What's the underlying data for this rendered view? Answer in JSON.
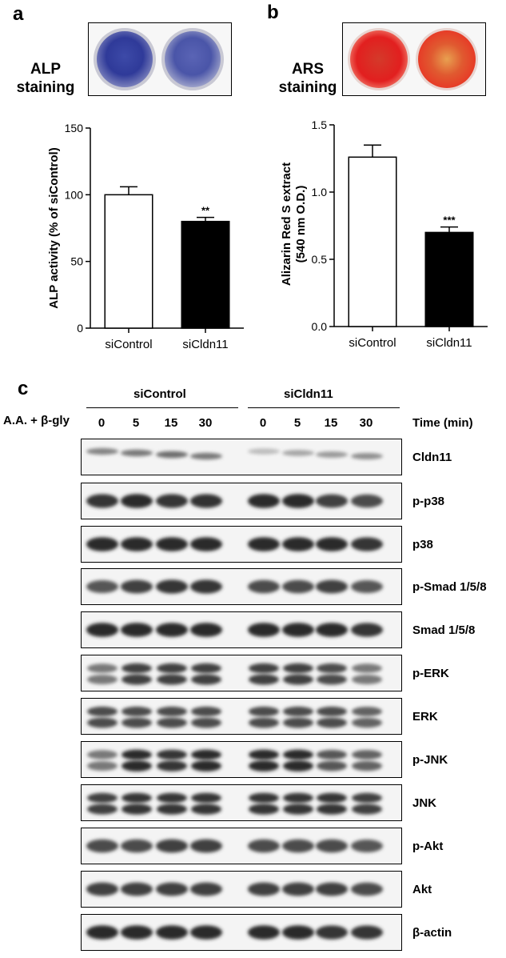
{
  "panels": {
    "a": "a",
    "b": "b",
    "c": "c"
  },
  "staining": {
    "alp": {
      "line1": "ALP",
      "line2": "staining"
    },
    "ars": {
      "line1": "ARS",
      "line2": "staining"
    }
  },
  "chart_data": [
    {
      "type": "bar",
      "panel": "a",
      "categories": [
        "siControl",
        "siCldn11"
      ],
      "values": [
        100,
        80
      ],
      "errors": [
        6,
        3
      ],
      "significance": [
        "",
        "**"
      ],
      "bar_colors": [
        "#ffffff",
        "#000000"
      ],
      "ylabel": "ALP activity (% of siControl)",
      "xlabel": "",
      "ylim": [
        0,
        150
      ],
      "yticks": [
        0,
        50,
        100,
        150
      ],
      "ytick_labels": [
        "0",
        "50",
        "100",
        "150"
      ]
    },
    {
      "type": "bar",
      "panel": "b",
      "categories": [
        "siControl",
        "siCldn11"
      ],
      "values": [
        1.26,
        0.7
      ],
      "errors": [
        0.09,
        0.04
      ],
      "significance": [
        "",
        "***"
      ],
      "bar_colors": [
        "#ffffff",
        "#000000"
      ],
      "ylabel": "Alizarin Red  S extract",
      "ylabel2": "(540 nm O.D.)",
      "xlabel": "",
      "ylim": [
        0,
        1.5
      ],
      "yticks": [
        0,
        0.5,
        1.0,
        1.5
      ],
      "ytick_labels": [
        "0.0",
        "0.5",
        "1.0",
        "1.5"
      ]
    }
  ],
  "western": {
    "treatment": "A.A. + β-gly",
    "group1": "siControl",
    "group2": "siCldn11",
    "time_label": "Time (min)",
    "timepoints": [
      "0",
      "5",
      "15",
      "30",
      "0",
      "5",
      "15",
      "30"
    ],
    "blots": [
      {
        "label": "Cldn11",
        "intensity": [
          0.55,
          0.6,
          0.65,
          0.6,
          0.3,
          0.4,
          0.45,
          0.5
        ],
        "double": false
      },
      {
        "label": "p-p38",
        "intensity": [
          0.9,
          0.95,
          0.9,
          0.92,
          0.95,
          0.95,
          0.85,
          0.8
        ],
        "double": false
      },
      {
        "label": "p38",
        "intensity": [
          0.95,
          0.95,
          0.95,
          0.95,
          0.95,
          0.95,
          0.95,
          0.9
        ],
        "double": false
      },
      {
        "label": "p-Smad 1/5/8",
        "intensity": [
          0.75,
          0.85,
          0.9,
          0.9,
          0.8,
          0.8,
          0.85,
          0.75
        ],
        "double": false
      },
      {
        "label": "Smad 1/5/8",
        "intensity": [
          0.95,
          0.95,
          0.95,
          0.95,
          0.95,
          0.95,
          0.95,
          0.9
        ],
        "double": false
      },
      {
        "label": "p-ERK",
        "intensity": [
          0.6,
          0.85,
          0.85,
          0.85,
          0.85,
          0.85,
          0.8,
          0.6
        ],
        "double": true
      },
      {
        "label": "ERK",
        "intensity": [
          0.8,
          0.8,
          0.8,
          0.8,
          0.8,
          0.8,
          0.8,
          0.7
        ],
        "double": true
      },
      {
        "label": "p-JNK",
        "intensity": [
          0.6,
          0.95,
          0.9,
          0.95,
          0.95,
          0.95,
          0.75,
          0.7
        ],
        "double": true
      },
      {
        "label": "JNK",
        "intensity": [
          0.85,
          0.9,
          0.9,
          0.9,
          0.9,
          0.9,
          0.9,
          0.85
        ],
        "double": true
      },
      {
        "label": "p-Akt",
        "intensity": [
          0.8,
          0.8,
          0.85,
          0.85,
          0.8,
          0.8,
          0.8,
          0.75
        ],
        "double": false
      },
      {
        "label": "Akt",
        "intensity": [
          0.85,
          0.85,
          0.85,
          0.85,
          0.85,
          0.85,
          0.85,
          0.8
        ],
        "double": false
      },
      {
        "label": "β-actin",
        "intensity": [
          0.95,
          0.95,
          0.95,
          0.95,
          0.95,
          0.95,
          0.9,
          0.9
        ],
        "double": false
      }
    ]
  }
}
